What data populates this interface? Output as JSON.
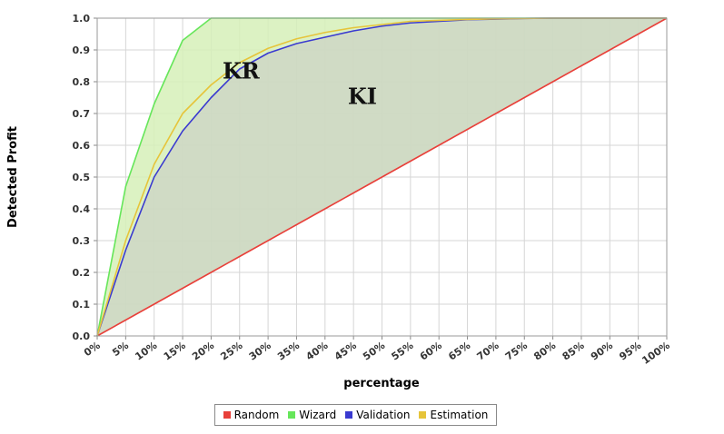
{
  "chart_data": {
    "type": "area",
    "ylabel": "Detected Profit",
    "xlabel": "percentage",
    "x": [
      "0%",
      "5%",
      "10%",
      "15%",
      "20%",
      "25%",
      "30%",
      "35%",
      "40%",
      "45%",
      "50%",
      "55%",
      "60%",
      "65%",
      "70%",
      "75%",
      "80%",
      "85%",
      "90%",
      "95%",
      "100%"
    ],
    "ylim": [
      0.0,
      1.0
    ],
    "yticks": [
      "0.0",
      "0.1",
      "0.2",
      "0.3",
      "0.4",
      "0.5",
      "0.6",
      "0.7",
      "0.8",
      "0.9",
      "1.0"
    ],
    "grid": true,
    "legend_position": "bottom",
    "series": [
      {
        "name": "Random",
        "color": "#e8403a",
        "values": [
          0.0,
          0.05,
          0.1,
          0.15,
          0.2,
          0.25,
          0.3,
          0.35,
          0.4,
          0.45,
          0.5,
          0.55,
          0.6,
          0.65,
          0.7,
          0.75,
          0.8,
          0.85,
          0.9,
          0.95,
          1.0
        ]
      },
      {
        "name": "Wizard",
        "color": "#66e65a",
        "values": [
          0.0,
          0.47,
          0.73,
          0.93,
          1.0,
          1.0,
          1.0,
          1.0,
          1.0,
          1.0,
          1.0,
          1.0,
          1.0,
          1.0,
          1.0,
          1.0,
          1.0,
          1.0,
          1.0,
          1.0,
          1.0
        ]
      },
      {
        "name": "Validation",
        "color": "#3a3ad0",
        "values": [
          0.0,
          0.27,
          0.5,
          0.645,
          0.75,
          0.84,
          0.89,
          0.92,
          0.94,
          0.96,
          0.975,
          0.985,
          0.99,
          0.995,
          0.997,
          0.999,
          1.0,
          1.0,
          1.0,
          1.0,
          1.0
        ]
      },
      {
        "name": "Estimation",
        "color": "#e6c43a",
        "values": [
          0.0,
          0.3,
          0.54,
          0.7,
          0.79,
          0.86,
          0.905,
          0.935,
          0.955,
          0.97,
          0.98,
          0.99,
          0.993,
          0.996,
          0.998,
          0.999,
          1.0,
          1.0,
          1.0,
          1.0,
          1.0
        ]
      }
    ],
    "annotations": [
      {
        "text": "KR",
        "x": 0.22,
        "y": 0.81
      },
      {
        "text": "KI",
        "x": 0.44,
        "y": 0.73
      }
    ]
  },
  "colors": {
    "background": "#ffffff",
    "plot_background": "#ffffff",
    "grid": "#d6d6d6",
    "ki_fill": "#cdd9c2",
    "kr_fill": "#d6f0b8"
  }
}
